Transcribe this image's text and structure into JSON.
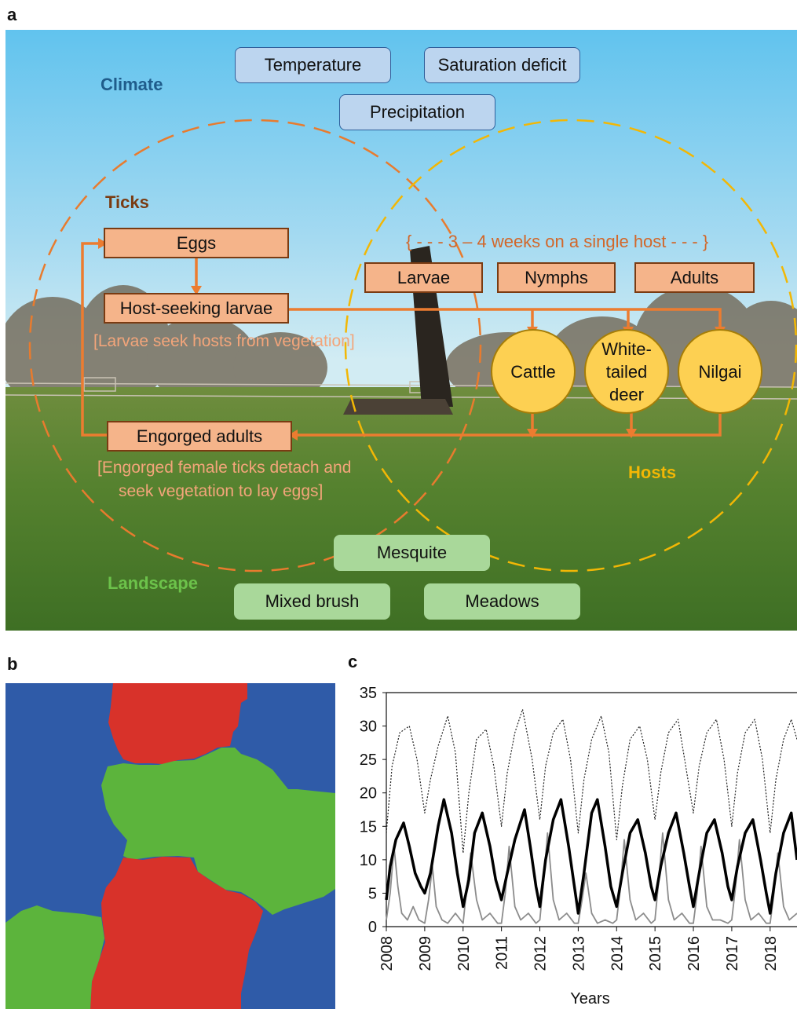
{
  "panels": {
    "a": "a",
    "b": "b",
    "c": "c"
  },
  "climate": {
    "label": "Climate",
    "items": [
      "Temperature",
      "Saturation deficit",
      "Precipitation"
    ],
    "color": "#1f5c8b"
  },
  "ticks": {
    "label": "Ticks",
    "color": "#7a3b12",
    "eggs": "Eggs",
    "host_seeking_larvae": "Host-seeking larvae",
    "larvae_note": "[Larvae seek hosts from vegetation]",
    "engorged_adults": "Engorged adults",
    "engorged_note_line1": "[Engorged female ticks detach and",
    "engorged_note_line2": "seek vegetation to lay eggs]",
    "on_host_note": "{ - - - 3 – 4 weeks on a single host - - - }",
    "stages": [
      "Larvae",
      "Nymphs",
      "Adults"
    ]
  },
  "hosts": {
    "label": "Hosts",
    "color": "#f2b705",
    "cattle": "Cattle",
    "deer_line1": "White-",
    "deer_line2": "tailed",
    "deer_line3": "deer",
    "nilgai": "Nilgai"
  },
  "landscape": {
    "label": "Landscape",
    "color": "#6cc24a",
    "items": [
      "Mesquite",
      "Mixed brush",
      "Meadows"
    ]
  },
  "map_colors": {
    "blue": "#2f5ba8",
    "red": "#d8322a",
    "green": "#5cb43c"
  },
  "chart_data": {
    "type": "line",
    "xlabel": "Years",
    "ylabel": "",
    "x_ticks": [
      "2008",
      "2009",
      "2010",
      "2011",
      "2012",
      "2013",
      "2014",
      "2015",
      "2016",
      "2017",
      "2018"
    ],
    "y_ticks": [
      "0",
      "5",
      "10",
      "15",
      "20",
      "25",
      "30",
      "35"
    ],
    "ylim": [
      0,
      35
    ],
    "xlim": [
      2008,
      2018.7
    ],
    "series": [
      {
        "style": "dotted black",
        "points": [
          [
            2008.0,
            14
          ],
          [
            2008.15,
            24
          ],
          [
            2008.35,
            29
          ],
          [
            2008.6,
            30
          ],
          [
            2008.8,
            25
          ],
          [
            2009.0,
            17
          ],
          [
            2009.15,
            22
          ],
          [
            2009.35,
            27
          ],
          [
            2009.6,
            31.5
          ],
          [
            2009.8,
            26
          ],
          [
            2010.0,
            11
          ],
          [
            2010.15,
            20
          ],
          [
            2010.35,
            28
          ],
          [
            2010.6,
            29.5
          ],
          [
            2010.8,
            24
          ],
          [
            2011.0,
            15
          ],
          [
            2011.15,
            23
          ],
          [
            2011.35,
            29
          ],
          [
            2011.55,
            32.5
          ],
          [
            2011.8,
            25
          ],
          [
            2012.0,
            16
          ],
          [
            2012.15,
            24
          ],
          [
            2012.35,
            29
          ],
          [
            2012.6,
            31
          ],
          [
            2012.8,
            25
          ],
          [
            2013.0,
            14
          ],
          [
            2013.15,
            22
          ],
          [
            2013.35,
            28
          ],
          [
            2013.6,
            31.5
          ],
          [
            2013.8,
            26
          ],
          [
            2014.0,
            13
          ],
          [
            2014.15,
            21
          ],
          [
            2014.35,
            28
          ],
          [
            2014.6,
            30
          ],
          [
            2014.8,
            25
          ],
          [
            2015.0,
            16
          ],
          [
            2015.15,
            23
          ],
          [
            2015.35,
            29
          ],
          [
            2015.6,
            31
          ],
          [
            2015.8,
            24
          ],
          [
            2016.0,
            17
          ],
          [
            2016.15,
            24
          ],
          [
            2016.35,
            29
          ],
          [
            2016.6,
            31
          ],
          [
            2016.8,
            25
          ],
          [
            2017.0,
            15
          ],
          [
            2017.15,
            23
          ],
          [
            2017.35,
            29
          ],
          [
            2017.6,
            31
          ],
          [
            2017.8,
            25
          ],
          [
            2018.0,
            14
          ],
          [
            2018.15,
            22
          ],
          [
            2018.35,
            28
          ],
          [
            2018.55,
            31
          ],
          [
            2018.7,
            28
          ]
        ]
      },
      {
        "style": "thick black",
        "points": [
          [
            2008.0,
            4
          ],
          [
            2008.1,
            9
          ],
          [
            2008.25,
            13
          ],
          [
            2008.45,
            15.5
          ],
          [
            2008.6,
            12
          ],
          [
            2008.75,
            8
          ],
          [
            2008.9,
            6
          ],
          [
            2009.0,
            5
          ],
          [
            2009.15,
            8
          ],
          [
            2009.35,
            15
          ],
          [
            2009.5,
            19
          ],
          [
            2009.7,
            14
          ],
          [
            2009.85,
            8
          ],
          [
            2010.0,
            3
          ],
          [
            2010.15,
            7
          ],
          [
            2010.3,
            14
          ],
          [
            2010.5,
            17
          ],
          [
            2010.7,
            12
          ],
          [
            2010.85,
            7
          ],
          [
            2011.0,
            4
          ],
          [
            2011.15,
            8
          ],
          [
            2011.35,
            13
          ],
          [
            2011.6,
            17.5
          ],
          [
            2011.75,
            12
          ],
          [
            2011.9,
            6
          ],
          [
            2012.0,
            3
          ],
          [
            2012.15,
            10
          ],
          [
            2012.35,
            16
          ],
          [
            2012.55,
            19
          ],
          [
            2012.75,
            12
          ],
          [
            2012.9,
            6
          ],
          [
            2013.0,
            2
          ],
          [
            2013.15,
            8
          ],
          [
            2013.35,
            17
          ],
          [
            2013.5,
            19
          ],
          [
            2013.7,
            12
          ],
          [
            2013.85,
            6
          ],
          [
            2014.0,
            3
          ],
          [
            2014.15,
            8
          ],
          [
            2014.35,
            14
          ],
          [
            2014.55,
            16
          ],
          [
            2014.75,
            11
          ],
          [
            2014.9,
            6
          ],
          [
            2015.0,
            4
          ],
          [
            2015.15,
            9
          ],
          [
            2015.35,
            14
          ],
          [
            2015.55,
            17
          ],
          [
            2015.75,
            11
          ],
          [
            2015.9,
            6
          ],
          [
            2016.0,
            3
          ],
          [
            2016.15,
            8
          ],
          [
            2016.35,
            14
          ],
          [
            2016.55,
            16
          ],
          [
            2016.75,
            11
          ],
          [
            2016.9,
            6
          ],
          [
            2017.0,
            4
          ],
          [
            2017.15,
            9
          ],
          [
            2017.35,
            14
          ],
          [
            2017.55,
            16
          ],
          [
            2017.75,
            10
          ],
          [
            2017.9,
            5
          ],
          [
            2018.0,
            2
          ],
          [
            2018.15,
            8
          ],
          [
            2018.35,
            14
          ],
          [
            2018.55,
            17
          ],
          [
            2018.7,
            10
          ]
        ]
      },
      {
        "style": "gray",
        "points": [
          [
            2008.0,
            1
          ],
          [
            2008.1,
            5
          ],
          [
            2008.2,
            12
          ],
          [
            2008.3,
            6
          ],
          [
            2008.4,
            2
          ],
          [
            2008.55,
            1
          ],
          [
            2008.7,
            3
          ],
          [
            2008.85,
            1
          ],
          [
            2009.0,
            0.5
          ],
          [
            2009.1,
            4
          ],
          [
            2009.2,
            9
          ],
          [
            2009.3,
            3
          ],
          [
            2009.45,
            1
          ],
          [
            2009.6,
            0.5
          ],
          [
            2009.8,
            2
          ],
          [
            2010.0,
            0.5
          ],
          [
            2010.1,
            6
          ],
          [
            2010.2,
            11
          ],
          [
            2010.35,
            4
          ],
          [
            2010.5,
            1
          ],
          [
            2010.7,
            2
          ],
          [
            2010.9,
            0.5
          ],
          [
            2011.0,
            0.5
          ],
          [
            2011.1,
            5
          ],
          [
            2011.2,
            12
          ],
          [
            2011.35,
            3
          ],
          [
            2011.5,
            1
          ],
          [
            2011.7,
            2
          ],
          [
            2011.9,
            0.5
          ],
          [
            2012.0,
            1
          ],
          [
            2012.1,
            7
          ],
          [
            2012.2,
            14
          ],
          [
            2012.35,
            4
          ],
          [
            2012.5,
            1
          ],
          [
            2012.7,
            2
          ],
          [
            2012.9,
            0.5
          ],
          [
            2013.0,
            0.5
          ],
          [
            2013.1,
            4
          ],
          [
            2013.2,
            8
          ],
          [
            2013.35,
            2
          ],
          [
            2013.5,
            0.5
          ],
          [
            2013.7,
            1
          ],
          [
            2013.9,
            0.5
          ],
          [
            2014.0,
            1
          ],
          [
            2014.1,
            6
          ],
          [
            2014.2,
            13
          ],
          [
            2014.35,
            4
          ],
          [
            2014.5,
            1
          ],
          [
            2014.7,
            2
          ],
          [
            2014.9,
            0.5
          ],
          [
            2015.0,
            1
          ],
          [
            2015.1,
            7
          ],
          [
            2015.2,
            14
          ],
          [
            2015.35,
            4
          ],
          [
            2015.5,
            1
          ],
          [
            2015.7,
            2
          ],
          [
            2015.9,
            0.5
          ],
          [
            2016.0,
            0.5
          ],
          [
            2016.1,
            5
          ],
          [
            2016.2,
            12
          ],
          [
            2016.35,
            3
          ],
          [
            2016.5,
            1
          ],
          [
            2016.7,
            1
          ],
          [
            2016.9,
            0.5
          ],
          [
            2017.0,
            1
          ],
          [
            2017.1,
            6
          ],
          [
            2017.2,
            13
          ],
          [
            2017.35,
            4
          ],
          [
            2017.5,
            1
          ],
          [
            2017.7,
            2
          ],
          [
            2017.9,
            0.5
          ],
          [
            2018.0,
            0.5
          ],
          [
            2018.1,
            5
          ],
          [
            2018.2,
            11
          ],
          [
            2018.35,
            3
          ],
          [
            2018.5,
            1
          ],
          [
            2018.7,
            2
          ]
        ]
      }
    ]
  }
}
